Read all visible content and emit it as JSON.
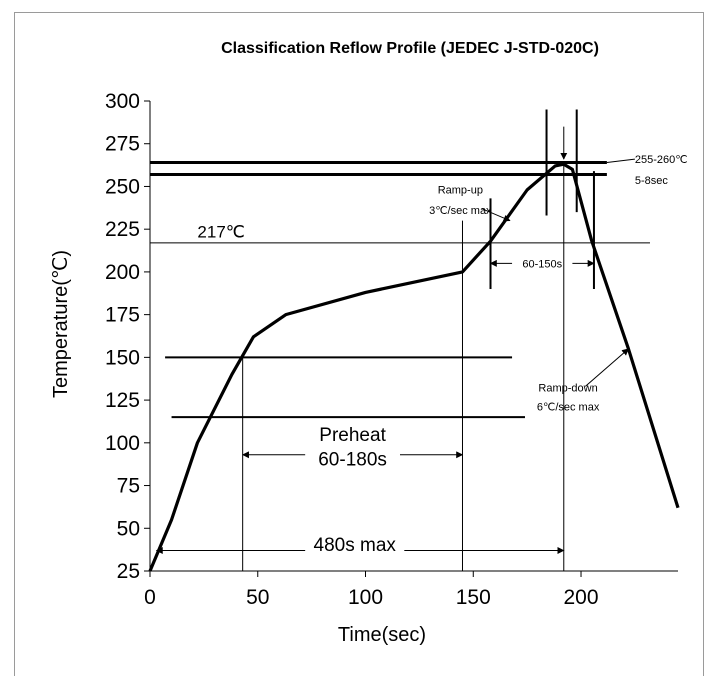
{
  "chart_data": {
    "type": "line",
    "title": "Classification Reflow Profile (JEDEC J-STD-020C)",
    "xlabel": "Time(sec)",
    "ylabel": "Temperature(℃)",
    "xlim": [
      0,
      245
    ],
    "ylim": [
      25,
      300
    ],
    "xticks": [
      0,
      50,
      100,
      150,
      200
    ],
    "yticks": [
      25,
      50,
      75,
      100,
      125,
      150,
      175,
      200,
      225,
      250,
      275,
      300
    ],
    "grid": false,
    "series": [
      {
        "x": [
          0,
          10,
          22,
          38,
          48,
          63,
          100,
          145,
          158,
          175,
          188,
          192,
          196,
          205,
          222,
          245
        ],
        "y": [
          25,
          55,
          100,
          140,
          162,
          175,
          188,
          200,
          218,
          248,
          262,
          263,
          260,
          218,
          155,
          62
        ]
      }
    ],
    "reference_lines": {
      "peak_top_y": 264,
      "peak_bottom_y": 257,
      "liquidus_y": 217,
      "preheat_top_y": 150,
      "preheat_bottom_y": 115,
      "preheat_start_x": 43,
      "preheat_end_x": 145,
      "peak_x": 192
    },
    "annotations": {
      "liquidus_label": "217℃",
      "peak_temp_label": "255-260℃",
      "peak_time_label": "5-8sec",
      "ramp_up_line1": "Ramp-up",
      "ramp_up_line2": "3℃/sec max",
      "ramp_down_line1": "Ramp-down",
      "ramp_down_line2": "6℃/sec max",
      "time_above_label": "60-150s",
      "preheat_line1": "Preheat",
      "preheat_line2": "60-180s",
      "max_time_label": "480s max"
    }
  }
}
